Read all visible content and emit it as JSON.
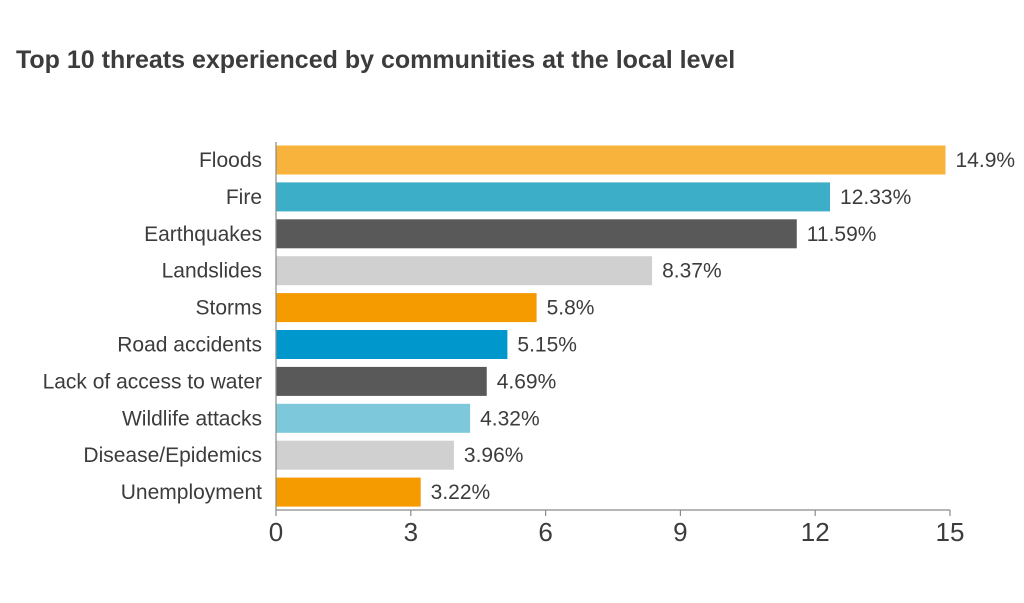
{
  "title": "Top 10 threats experienced by communities at the local level",
  "chart_data": {
    "type": "bar",
    "orientation": "horizontal",
    "title": "Top 10 threats experienced by communities at the local level",
    "xlabel": "",
    "ylabel": "",
    "xlim": [
      0,
      15
    ],
    "xticks": [
      0,
      3,
      6,
      9,
      12,
      15
    ],
    "grid": false,
    "categories": [
      "Floods",
      "Fire",
      "Earthquakes",
      "Landslides",
      "Storms",
      "Road accidents",
      "Lack of access to water",
      "Wildlife attacks",
      "Disease/Epidemics",
      "Unemployment"
    ],
    "values": [
      14.9,
      12.33,
      11.59,
      8.37,
      5.8,
      5.15,
      4.69,
      4.32,
      3.96,
      3.22
    ],
    "value_labels": [
      "14.9%",
      "12.33%",
      "11.59%",
      "8.37%",
      "5.8%",
      "5.15%",
      "4.69%",
      "4.32%",
      "3.96%",
      "3.22%"
    ],
    "colors": [
      "#F7B33B",
      "#3DAEC8",
      "#595959",
      "#D0D0D0",
      "#F59B00",
      "#0098CC",
      "#595959",
      "#7DC8DB",
      "#D0D0D0",
      "#F59B00"
    ],
    "axis_color": "#8a8a8a"
  }
}
